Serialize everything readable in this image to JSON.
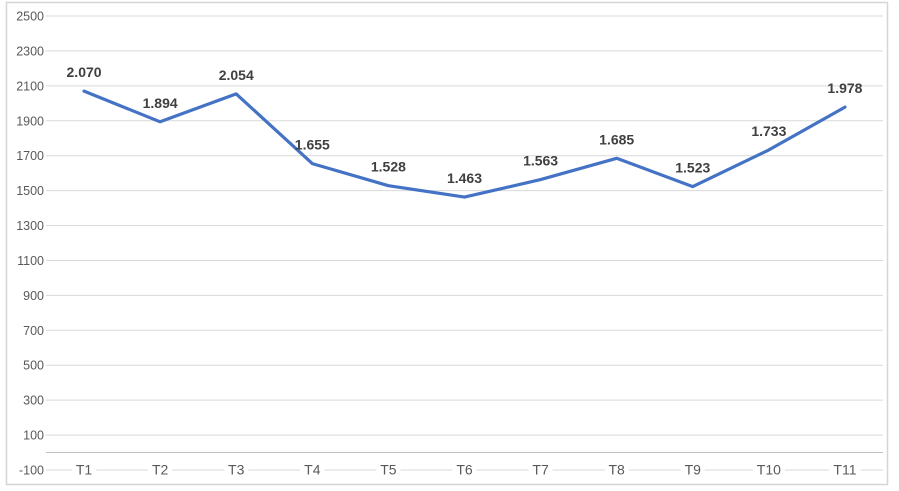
{
  "chart_data": {
    "type": "line",
    "title": "",
    "xlabel": "",
    "ylabel": "",
    "categories": [
      "T1",
      "T2",
      "T3",
      "T4",
      "T5",
      "T6",
      "T7",
      "T8",
      "T9",
      "T10",
      "T11"
    ],
    "values": [
      2070,
      1894,
      2054,
      1655,
      1528,
      1463,
      1563,
      1685,
      1523,
      1733,
      1978
    ],
    "value_labels": [
      "2.070",
      "1.894",
      "2.054",
      "1.655",
      "1.528",
      "1.463",
      "1.563",
      "1.685",
      "1.523",
      "1.733",
      "1.978"
    ],
    "ylim": [
      -100,
      2500
    ],
    "y_tick_step": 200,
    "y_tick_labels": [
      "2500",
      "2300",
      "2100",
      "1900",
      "1700",
      "1500",
      "1300",
      "1100",
      "900",
      "700",
      "500",
      "300",
      "100",
      "-100"
    ],
    "grid": true,
    "legend": false,
    "axis_cross_value": 0,
    "colors": {
      "series_line": "#4472C4",
      "gridline": "#D9D9D9",
      "zero_axis_line": "#BFBFBF",
      "tick_label": "#595959",
      "data_label": "#404040",
      "chart_border": "#D5D5D5",
      "background": "#FFFFFF"
    }
  }
}
